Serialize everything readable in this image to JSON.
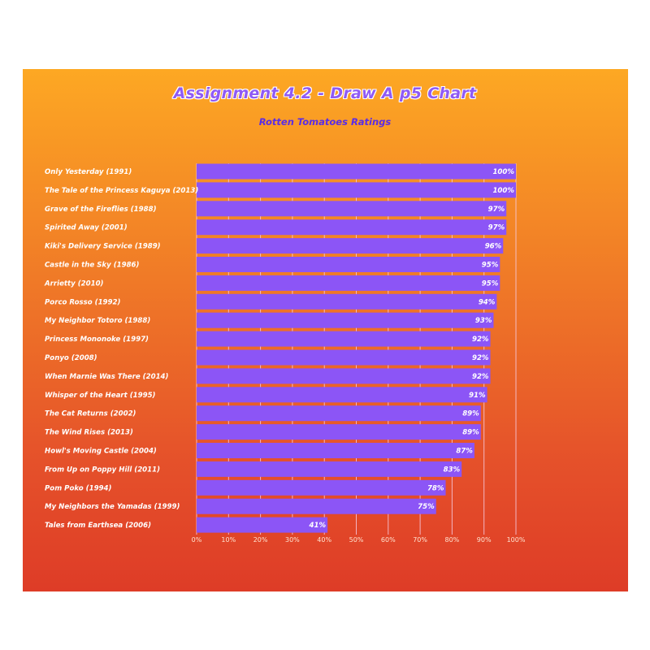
{
  "chart_data": {
    "type": "bar",
    "orientation": "horizontal",
    "title": "Assignment 4.2 - Draw A p5 Chart",
    "subtitle": "Rotten Tomatoes Ratings",
    "categories": [
      "Only Yesterday (1991)",
      "The Tale of the Princess Kaguya (2013)",
      "Grave of the Fireflies (1988)",
      "Spirited Away (2001)",
      "Kiki's Delivery Service (1989)",
      "Castle in the Sky (1986)",
      "Arrietty (2010)",
      "Porco Rosso (1992)",
      "My Neighbor Totoro (1988)",
      "Princess Mononoke (1997)",
      "Ponyo (2008)",
      "When Marnie Was There (2014)",
      "Whisper of the Heart (1995)",
      "The Cat Returns (2002)",
      "The Wind Rises (2013)",
      "Howl's Moving Castle (2004)",
      "From Up on Poppy Hill (2011)",
      "Pom Poko (1994)",
      "My Neighbors the Yamadas (1999)",
      "Tales from Earthsea (2006)"
    ],
    "values": [
      100,
      100,
      97,
      97,
      96,
      95,
      95,
      94,
      93,
      92,
      92,
      92,
      91,
      89,
      89,
      87,
      83,
      78,
      75,
      41
    ],
    "value_labels": [
      "100%",
      "100%",
      "97%",
      "97%",
      "96%",
      "95%",
      "95%",
      "94%",
      "93%",
      "92%",
      "92%",
      "92%",
      "91%",
      "89%",
      "89%",
      "87%",
      "83%",
      "78%",
      "75%",
      "41%"
    ],
    "xlim": [
      0,
      100
    ],
    "xticks": [
      "0%",
      "10%",
      "20%",
      "30%",
      "40%",
      "50%",
      "60%",
      "70%",
      "80%",
      "90%",
      "100%"
    ],
    "grid": true,
    "legend": "none",
    "colors": {
      "bar": "#8c55f6",
      "grid": "#f6c8de",
      "label_text": "#ffffff",
      "tick_text": "#ffe3d0"
    }
  }
}
